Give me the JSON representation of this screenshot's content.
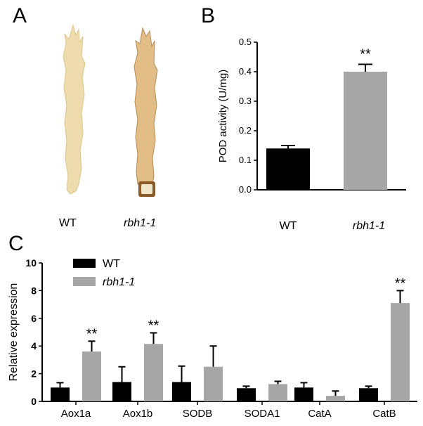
{
  "panels": {
    "a": {
      "letter": "A",
      "labels": [
        "WT",
        "rbh1-1"
      ]
    },
    "b": {
      "letter": "B"
    },
    "c": {
      "letter": "C"
    }
  },
  "colors": {
    "wt": "#000000",
    "mutant": "#a6a6a6",
    "axis": "#000000",
    "tissue_wt": "#efdcae",
    "tissue_mutant": "#d8b07a"
  },
  "chart_data": [
    {
      "type": "bar",
      "panel": "B",
      "categories": [
        "WT",
        "rbh1-1"
      ],
      "values": [
        0.14,
        0.4
      ],
      "errors": [
        0.01,
        0.025
      ],
      "significance": [
        "",
        "**"
      ],
      "ylabel": "POD activity (U/mg)",
      "ylim": [
        0,
        0.5
      ],
      "yticks": [
        "0.0",
        "0.1",
        "0.2",
        "0.3",
        "0.4",
        "0.5"
      ],
      "grid": false
    },
    {
      "type": "bar",
      "panel": "C",
      "categories": [
        "Aox1a",
        "Aox1b",
        "SODB",
        "SODA1",
        "CatA",
        "CatB"
      ],
      "series": [
        {
          "name": "WT",
          "values": [
            1.0,
            1.4,
            1.4,
            0.95,
            1.0,
            0.95
          ],
          "errors": [
            0.35,
            1.1,
            1.15,
            0.15,
            0.35,
            0.15
          ]
        },
        {
          "name": "rbh1-1",
          "values": [
            3.6,
            4.15,
            2.5,
            1.25,
            0.4,
            7.1
          ],
          "errors": [
            0.75,
            0.8,
            1.5,
            0.2,
            0.35,
            0.9
          ]
        }
      ],
      "significance": [
        "**",
        "**",
        "",
        "",
        "",
        "**"
      ],
      "ylabel": "Relative expression",
      "ylim": [
        0,
        10
      ],
      "yticks": [
        "0",
        "2",
        "4",
        "6",
        "8",
        "10"
      ],
      "legend_position": "top-left",
      "grid": false
    }
  ]
}
